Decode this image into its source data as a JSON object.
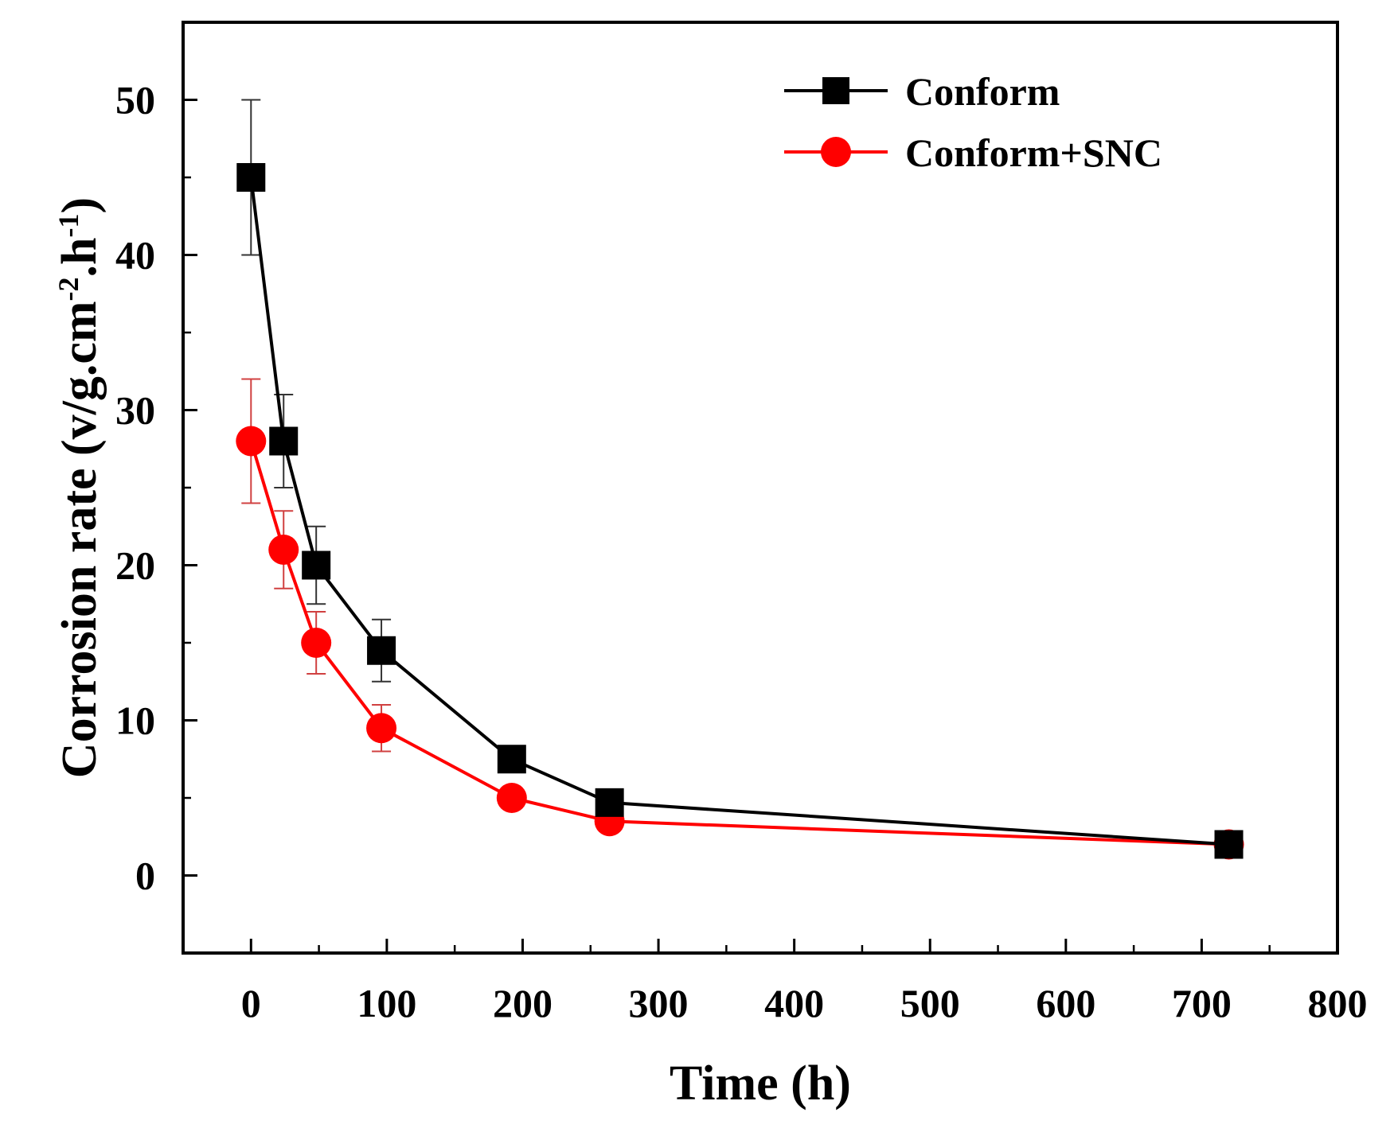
{
  "chart_data": {
    "type": "line",
    "xlabel": "Time (h)",
    "ylabel": {
      "base": "Corrosion rate (v/g.cm",
      "sup1": "-2",
      "mid": ".h",
      "sup2": "-1",
      "end": ")"
    },
    "xlim": [
      -50,
      800
    ],
    "ylim": [
      -5,
      55
    ],
    "x_ticks": [
      0,
      100,
      200,
      300,
      400,
      500,
      600,
      700,
      800
    ],
    "y_ticks": [
      0,
      10,
      20,
      30,
      40,
      50
    ],
    "x_minor_step": 50,
    "y_minor_step": 5,
    "grid": false,
    "legend_position": "top-right",
    "series": [
      {
        "name": "Conform",
        "color": "#000000",
        "marker": "square",
        "x": [
          0,
          24,
          48,
          96,
          192,
          264,
          720
        ],
        "y": [
          45,
          28,
          20,
          14.5,
          7.5,
          4.7,
          2
        ],
        "err": [
          5,
          3,
          2.5,
          2,
          0.8,
          0.4,
          0.3
        ]
      },
      {
        "name": "Conform+SNC",
        "color": "#ff0000",
        "marker": "circle",
        "x": [
          0,
          24,
          48,
          96,
          192,
          264,
          720
        ],
        "y": [
          28,
          21,
          15,
          9.5,
          5,
          3.5,
          2
        ],
        "err": [
          4,
          2.5,
          2,
          1.5,
          0.5,
          0.4,
          0.3
        ]
      }
    ]
  }
}
